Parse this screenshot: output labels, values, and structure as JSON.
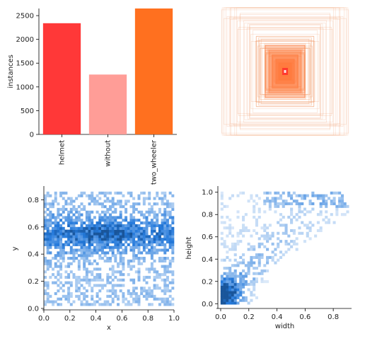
{
  "chart_data": [
    {
      "id": "class-counts",
      "type": "bar",
      "categories": [
        "helmet",
        "without",
        "two_wheeler"
      ],
      "values": [
        2340,
        1260,
        2650
      ],
      "colors": [
        "#ff3838",
        "#ff9d97",
        "#ff701f"
      ],
      "xlabel": "",
      "ylabel": "instances",
      "ylim": [
        0,
        2650
      ],
      "yticks": [
        "0",
        "500",
        "1000",
        "1500",
        "2000",
        "2500"
      ],
      "ytick_values": [
        0,
        500,
        1000,
        1500,
        2000,
        2500
      ],
      "grid": false
    },
    {
      "id": "box-overlay",
      "type": "other",
      "description_free": true,
      "colors": [
        "#f2a477",
        "#ff7a3d",
        "#ff3a2f"
      ]
    },
    {
      "id": "xy-distribution",
      "type": "heatmap",
      "xlabel": "x",
      "ylabel": "y",
      "xlim": [
        0.0,
        1.0
      ],
      "ylim": [
        0.0,
        0.88
      ],
      "xticks": [
        "0.0",
        "0.2",
        "0.4",
        "0.6",
        "0.8",
        "1.0"
      ],
      "xtick_values": [
        0.0,
        0.2,
        0.4,
        0.6,
        0.8,
        1.0
      ],
      "yticks": [
        "0.0",
        "0.2",
        "0.4",
        "0.6",
        "0.8"
      ],
      "ytick_values": [
        0.0,
        0.2,
        0.4,
        0.6,
        0.8
      ],
      "density_peak": [
        0.45,
        0.55
      ],
      "color_low": "#b9d6f7",
      "color_high": "#1f4f7a"
    },
    {
      "id": "wh-distribution",
      "type": "heatmap",
      "xlabel": "width",
      "ylabel": "height",
      "xlim": [
        -0.02,
        0.93
      ],
      "ylim": [
        -0.03,
        1.03
      ],
      "xticks": [
        "0.0",
        "0.2",
        "0.4",
        "0.6",
        "0.8"
      ],
      "xtick_values": [
        0.0,
        0.2,
        0.4,
        0.6,
        0.8
      ],
      "yticks": [
        "0.0",
        "0.2",
        "0.4",
        "0.6",
        "0.8",
        "1.0"
      ],
      "ytick_values": [
        0.0,
        0.2,
        0.4,
        0.6,
        0.8,
        1.0
      ],
      "density_peak": [
        0.02,
        0.03
      ],
      "color_low": "#b9d6f7",
      "color_high": "#1f4f7a"
    }
  ]
}
